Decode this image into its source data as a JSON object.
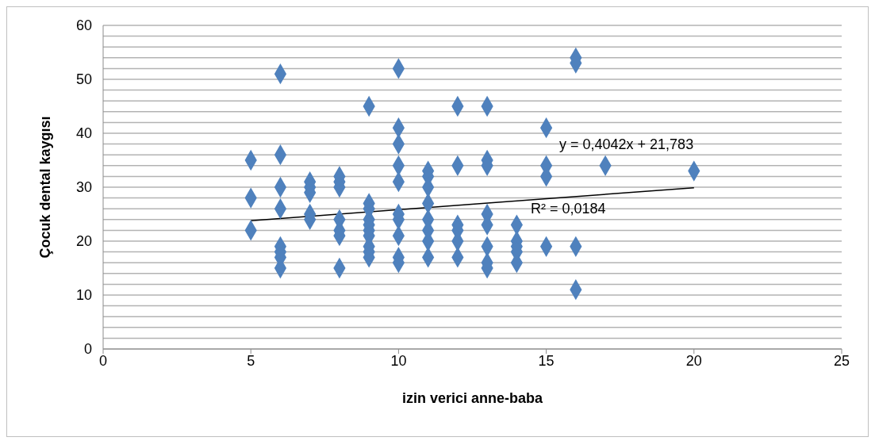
{
  "chart_data": {
    "type": "scatter",
    "xlabel": "izin verici anne-baba",
    "ylabel": "Çocuk dental kaygısı",
    "series": [
      {
        "marker": "diamond",
        "color": "#4f81bd",
        "x": [
          5,
          5,
          5,
          6,
          6,
          6,
          6,
          6,
          6,
          6,
          6,
          7,
          7,
          7,
          7,
          7,
          8,
          8,
          8,
          8,
          8,
          8,
          8,
          9,
          9,
          9,
          9,
          9,
          9,
          9,
          9,
          9,
          9,
          10,
          10,
          10,
          10,
          10,
          10,
          10,
          10,
          10,
          10,
          11,
          11,
          11,
          11,
          11,
          11,
          11,
          11,
          12,
          12,
          12,
          12,
          12,
          12,
          13,
          13,
          13,
          13,
          13,
          13,
          13,
          13,
          14,
          14,
          14,
          14,
          14,
          15,
          15,
          15,
          15,
          16,
          16,
          16,
          16,
          17,
          20
        ],
        "values": [
          35,
          28,
          22,
          51,
          36,
          30,
          26,
          19,
          18,
          17,
          15,
          31,
          30,
          29,
          25,
          24,
          32,
          31,
          30,
          24,
          22,
          21,
          15,
          45,
          27,
          26,
          24,
          23,
          22,
          21,
          19,
          18,
          17,
          52,
          41,
          38,
          34,
          31,
          25,
          24,
          21,
          17,
          16,
          33,
          32,
          30,
          27,
          24,
          22,
          20,
          17,
          45,
          34,
          23,
          22,
          20,
          17,
          45,
          35,
          34,
          25,
          23,
          19,
          16,
          15,
          23,
          20,
          19,
          18,
          16,
          41,
          34,
          32,
          19,
          54,
          53,
          19,
          11,
          34,
          33
        ]
      },
      {
        "type": "line",
        "marker": "none",
        "color": "#000000",
        "x": [
          5,
          20
        ],
        "values": [
          23.8,
          29.9
        ]
      }
    ],
    "xlim": [
      0,
      25
    ],
    "xticks": [
      0,
      5,
      10,
      15,
      20,
      25
    ],
    "ylim": [
      0,
      60
    ],
    "yticks": [
      0,
      {
        "value": 2,
        "label": null
      },
      {
        "value": 4,
        "label": null
      },
      {
        "value": 6,
        "label": null
      },
      {
        "value": 8,
        "label": null
      },
      10,
      {
        "value": 12,
        "label": null
      },
      {
        "value": 14,
        "label": null
      },
      {
        "value": 16,
        "label": null
      },
      {
        "value": 18,
        "label": null
      },
      20,
      {
        "value": 22,
        "label": null
      },
      {
        "value": 24,
        "label": null
      },
      {
        "value": 26,
        "label": null
      },
      {
        "value": 28,
        "label": null
      },
      30,
      {
        "value": 32,
        "label": null
      },
      {
        "value": 34,
        "label": null
      },
      {
        "value": 36,
        "label": null
      },
      {
        "value": 38,
        "label": null
      },
      40,
      {
        "value": 42,
        "label": null
      },
      {
        "value": 44,
        "label": null
      },
      {
        "value": 46,
        "label": null
      },
      {
        "value": 48,
        "label": null
      },
      50,
      {
        "value": 52,
        "label": null
      },
      {
        "value": 54,
        "label": null
      },
      {
        "value": 56,
        "label": null
      },
      {
        "value": 58,
        "label": null
      },
      60
    ],
    "grid": "y",
    "line_style": "solid",
    "legend": false,
    "annotations": [
      "y = 0,4042x + 21,783",
      "R² = 0,0184"
    ]
  }
}
